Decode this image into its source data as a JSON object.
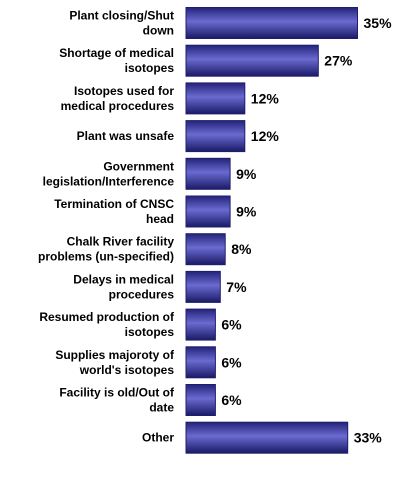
{
  "chart_data": {
    "type": "bar",
    "orientation": "horizontal",
    "categories": [
      [
        "Plant closing/Shut",
        "down"
      ],
      [
        "Shortage of medical",
        "isotopes"
      ],
      [
        "Isotopes used for",
        "medical procedures"
      ],
      [
        "Plant was unsafe"
      ],
      [
        "Government",
        "legislation/Interference"
      ],
      [
        "Termination of CNSC",
        "head"
      ],
      [
        "Chalk River facility",
        "problems (un-specified)"
      ],
      [
        "Delays in medical",
        "procedures"
      ],
      [
        "Resumed production of",
        "isotopes"
      ],
      [
        "Supplies majoroty of",
        "world's isotopes"
      ],
      [
        "Facility is old/Out of",
        "date"
      ],
      [
        "Other"
      ]
    ],
    "values": [
      35,
      27,
      12,
      12,
      9,
      9,
      8,
      7,
      6,
      6,
      6,
      33
    ],
    "value_labels": [
      "35%",
      "27%",
      "12%",
      "12%",
      "9%",
      "9%",
      "8%",
      "7%",
      "6%",
      "6%",
      "6%",
      "33%"
    ],
    "unit": "%",
    "grid": false,
    "legend": "none",
    "colors": {
      "bar_dark": "#1e1e6e",
      "bar_light": "#6a6ad0",
      "text": "#000000"
    }
  }
}
